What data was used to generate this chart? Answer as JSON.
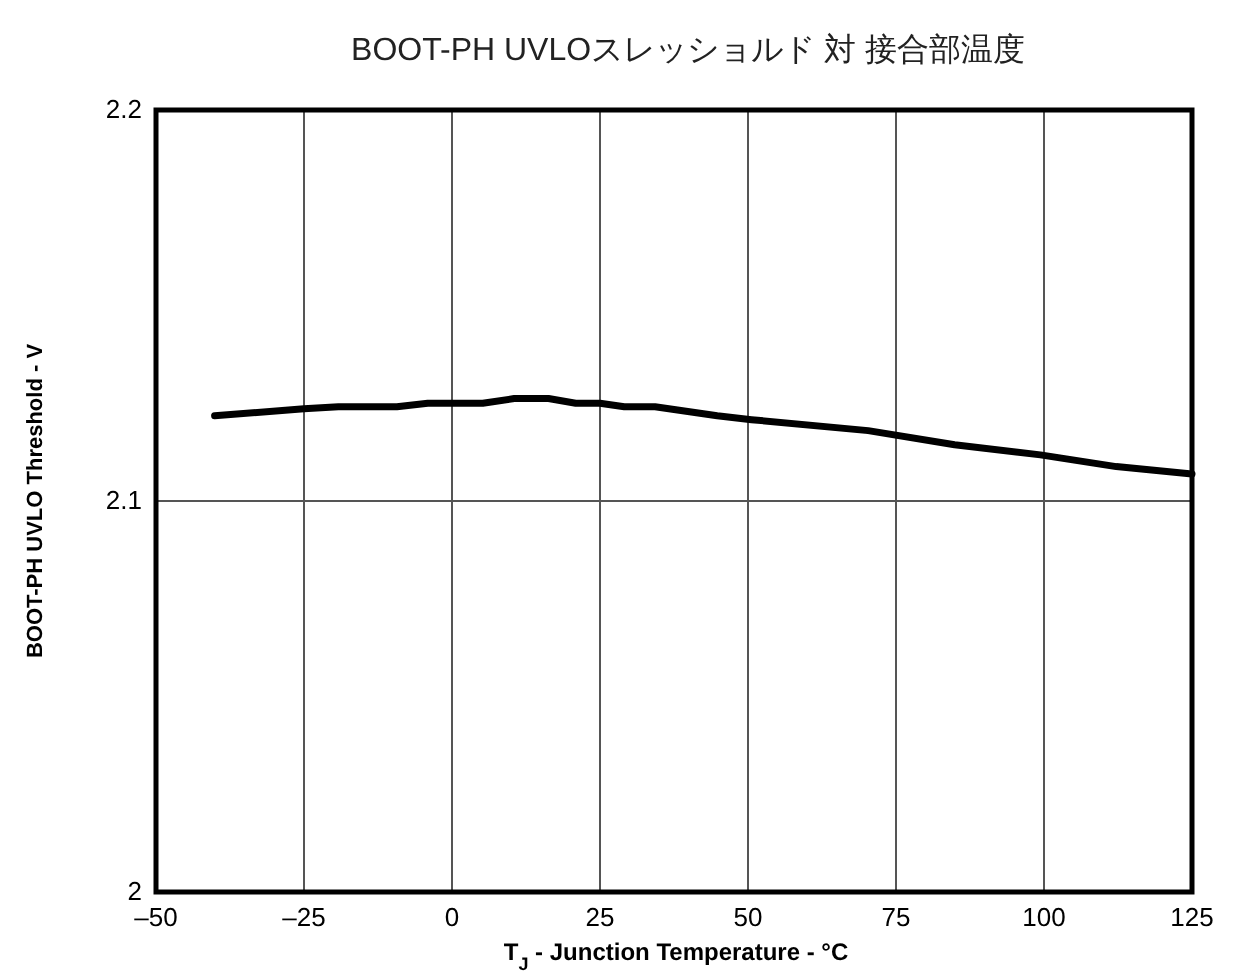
{
  "chart_data": {
    "type": "line",
    "title": "BOOT-PH UVLOスレッショルド 対 接合部温度",
    "xlabel": "T$_{J}$ - Junction Temperature - °C",
    "ylabel": "BOOT-PH UVLO Threshold - V",
    "x": [
      -40.1,
      -25,
      -19.2,
      -9.3,
      -4.1,
      5.2,
      10.5,
      16.3,
      20.9,
      25,
      29.1,
      34.3,
      44.8,
      50.6,
      70.3,
      84.9,
      99.4,
      112.2,
      125
    ],
    "series": [
      {
        "color": "#000000",
        "values": [
          2.1218,
          2.1236,
          2.1241,
          2.1241,
          2.125,
          2.125,
          2.1262,
          2.1262,
          2.125,
          2.125,
          2.1241,
          2.1241,
          2.1218,
          2.1208,
          2.118,
          2.1144,
          2.1118,
          2.1088,
          2.1069
        ]
      }
    ],
    "xlim": [
      -50,
      125
    ],
    "xticks": [
      {
        "value": -50,
        "label": "–50"
      },
      {
        "value": -25,
        "label": "–25"
      },
      0,
      25,
      50,
      75,
      100,
      125
    ],
    "ylim": [
      2,
      2.2
    ],
    "yticks": [
      2,
      2.1,
      2.2
    ],
    "grid": true,
    "marker": "none",
    "line_style": "solid"
  }
}
